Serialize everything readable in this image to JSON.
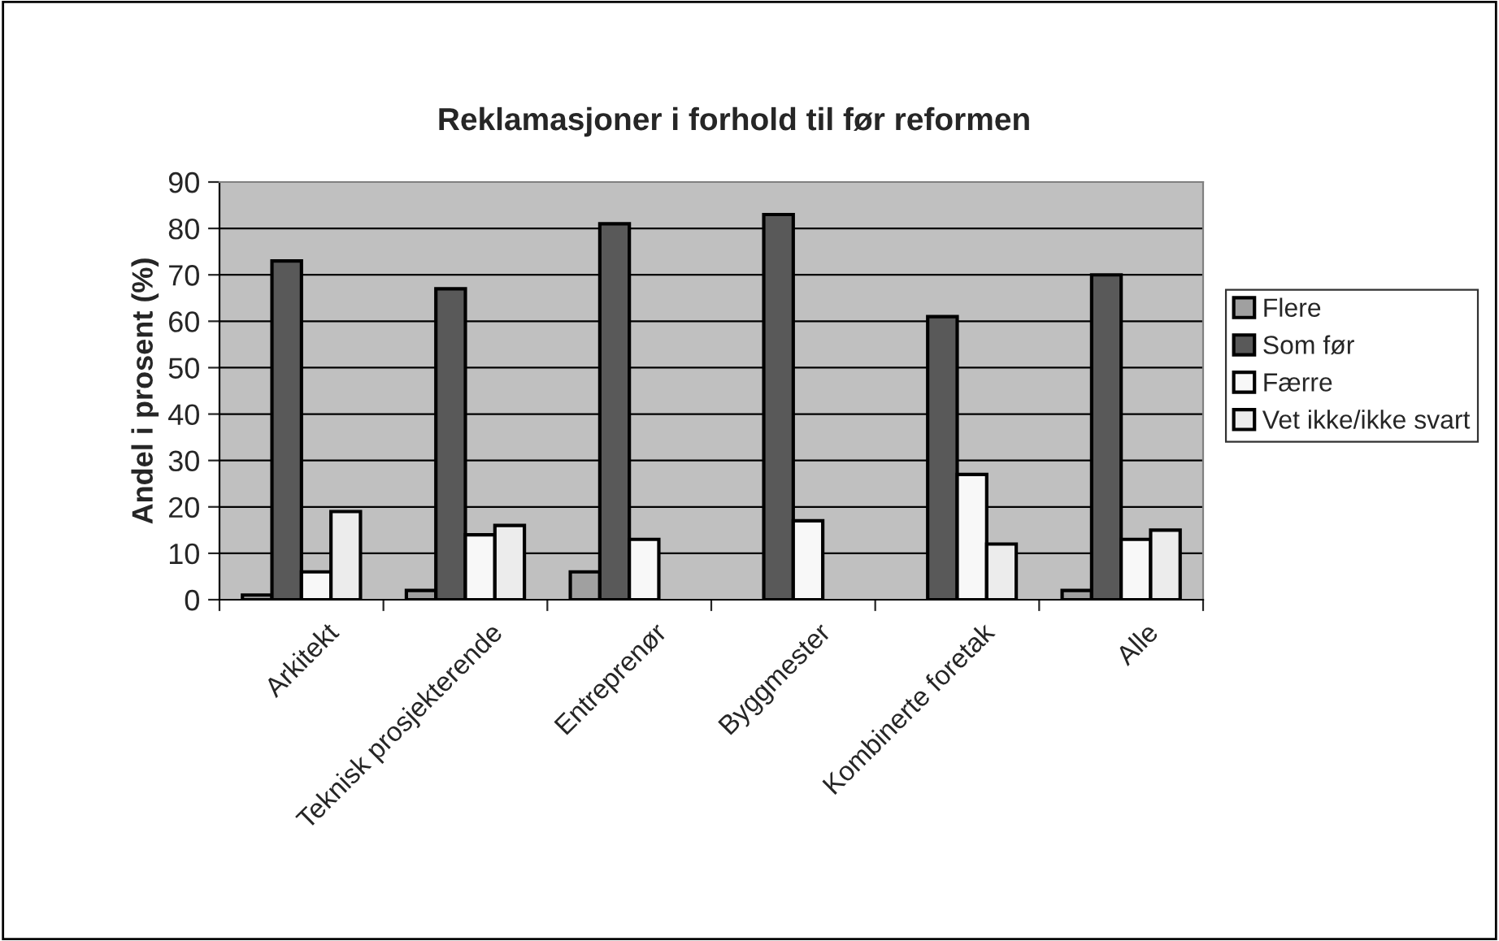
{
  "chart_data": {
    "type": "bar",
    "title": "Reklamasjoner i forhold til før reformen",
    "ylabel": "Andel i prosent (%)",
    "categories": [
      "Arkitekt",
      "Teknisk prosjekterende",
      "Entreprenør",
      "Byggmester",
      "Kombinerte foretak",
      "Alle"
    ],
    "series": [
      {
        "name": "Flere",
        "color": "#a0a0a0",
        "values": [
          1,
          2,
          6,
          null,
          null,
          2
        ]
      },
      {
        "name": "Som før",
        "color": "#595959",
        "values": [
          73,
          67,
          81,
          83,
          61,
          70
        ]
      },
      {
        "name": "Færre",
        "color": "#f8f8f8",
        "values": [
          6,
          14,
          13,
          17,
          27,
          13
        ]
      },
      {
        "name": "Vet ikke/ikke svart",
        "color": "#ececec",
        "values": [
          19,
          16,
          null,
          null,
          12,
          15
        ]
      }
    ],
    "ylim": [
      0,
      90
    ],
    "yticks": [
      0,
      10,
      20,
      30,
      40,
      50,
      60,
      70,
      80,
      90
    ],
    "grid": "y",
    "legend": "right"
  }
}
